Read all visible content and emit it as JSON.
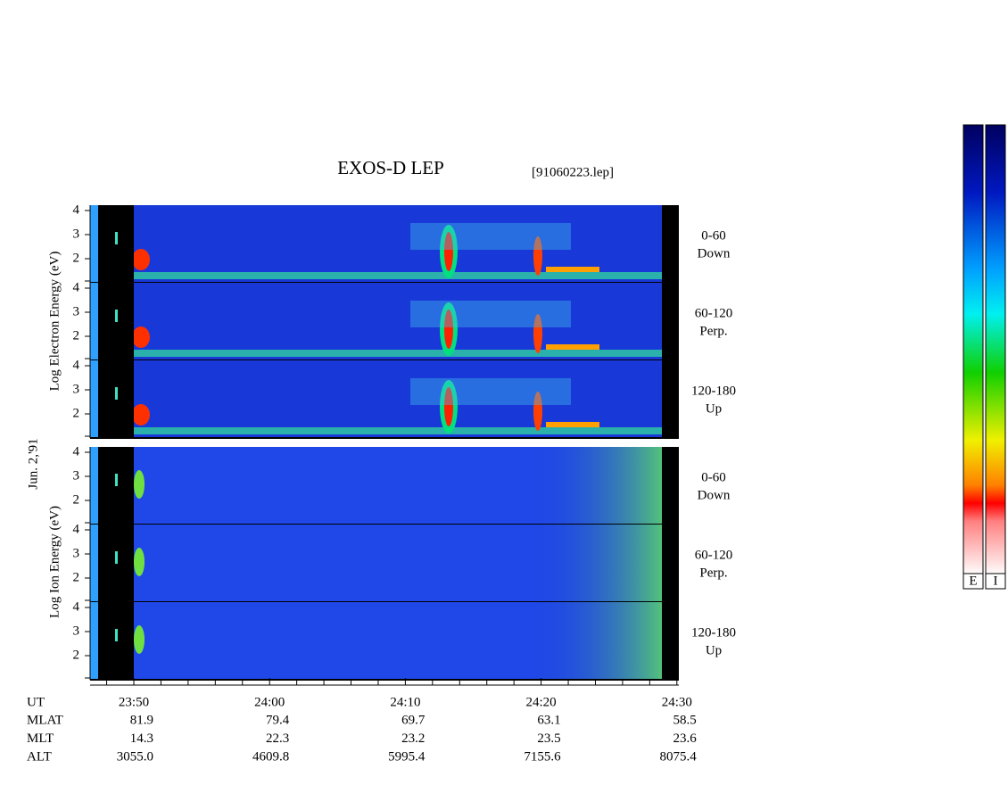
{
  "header": {
    "title": "EXOS-D LEP",
    "file": "[91060223.lep]"
  },
  "date": "Jun. 2,'91",
  "electron": {
    "axis_label": "Log Electron Energy (eV)",
    "panels": [
      {
        "angle": "0-60",
        "direction": "Down",
        "yticks": [
          2,
          3,
          4
        ]
      },
      {
        "angle": "60-120",
        "direction": "Perp.",
        "yticks": [
          2,
          3,
          4
        ]
      },
      {
        "angle": "120-180",
        "direction": "Up",
        "yticks": [
          2,
          3,
          4
        ]
      }
    ]
  },
  "ion": {
    "axis_label": "Log Ion Energy (eV)",
    "panels": [
      {
        "angle": "0-60",
        "direction": "Down",
        "yticks": [
          2,
          3,
          4
        ]
      },
      {
        "angle": "60-120",
        "direction": "Perp.",
        "yticks": [
          2,
          3,
          4
        ]
      },
      {
        "angle": "120-180",
        "direction": "Up",
        "yticks": [
          2,
          3,
          4
        ]
      }
    ]
  },
  "time_axis": {
    "label": "UT",
    "ticks": [
      "23:50",
      "24:00",
      "24:10",
      "24:20",
      "24:30"
    ]
  },
  "ephemeris": [
    {
      "name": "MLAT",
      "values": [
        "81.9",
        "79.4",
        "69.7",
        "63.1",
        "58.5"
      ]
    },
    {
      "name": "MLT",
      "values": [
        "14.3",
        "22.3",
        "23.2",
        "23.5",
        "23.6"
      ]
    },
    {
      "name": "ALT",
      "values": [
        "3055.0",
        "4609.8",
        "5995.4",
        "7155.6",
        "8075.4"
      ]
    }
  ],
  "colorbar": {
    "labels": [
      "E",
      "I"
    ]
  }
}
